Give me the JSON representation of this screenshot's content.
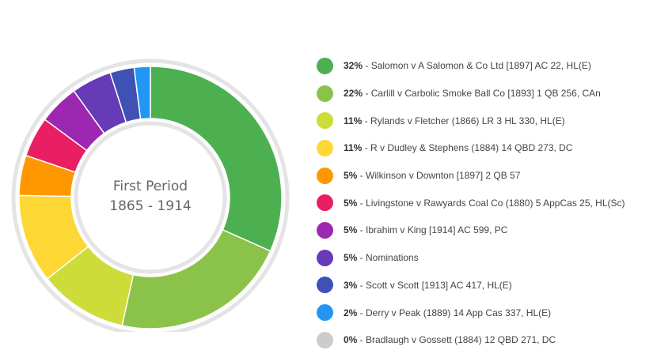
{
  "chart_data": {
    "type": "pie",
    "variant": "donut",
    "center_title": "First Period",
    "center_subtitle": "1865 - 1914",
    "slices": [
      {
        "percent_label": "32%",
        "value": 32,
        "label": "Salomon v A Salomon & Co Ltd [1897] AC 22, HL(E)",
        "color": "#4caf50"
      },
      {
        "percent_label": "22%",
        "value": 22,
        "label": "Carlill v Carbolic Smoke Ball Co [1893] 1 QB 256, CAn",
        "color": "#8bc34a"
      },
      {
        "percent_label": "11%",
        "value": 11,
        "label": "Rylands v Fletcher (1866) LR 3 HL 330, HL(E)",
        "color": "#cddc39"
      },
      {
        "percent_label": "11%",
        "value": 11,
        "label": "R v Dudley & Stephens (1884) 14 QBD 273, DC",
        "color": "#fdd835"
      },
      {
        "percent_label": "5%",
        "value": 5,
        "label": "Wilkinson v Downton [1897] 2 QB 57",
        "color": "#ff9800"
      },
      {
        "percent_label": "5%",
        "value": 5,
        "label": "Livingstone v Rawyards Coal Co (1880) 5 AppCas 25, HL(Sc)",
        "color": "#e91e63"
      },
      {
        "percent_label": "5%",
        "value": 5,
        "label": "Ibrahim v King [1914] AC 599, PC",
        "color": "#9c27b0"
      },
      {
        "percent_label": "5%",
        "value": 5,
        "label": "Nominations",
        "color": "#673ab7"
      },
      {
        "percent_label": "3%",
        "value": 3,
        "label": "Scott v Scott [1913] AC 417, HL(E)",
        "color": "#3f51b5"
      },
      {
        "percent_label": "2%",
        "value": 2,
        "label": "Derry v Peak  (1889) 14 App Cas 337, HL(E)",
        "color": "#2196f3"
      },
      {
        "percent_label": "0%",
        "value": 0,
        "label": "Bradlaugh v Gossett (1884) 12 QBD 271, DC",
        "color": "#cccccc"
      }
    ],
    "legend_position": "right"
  }
}
